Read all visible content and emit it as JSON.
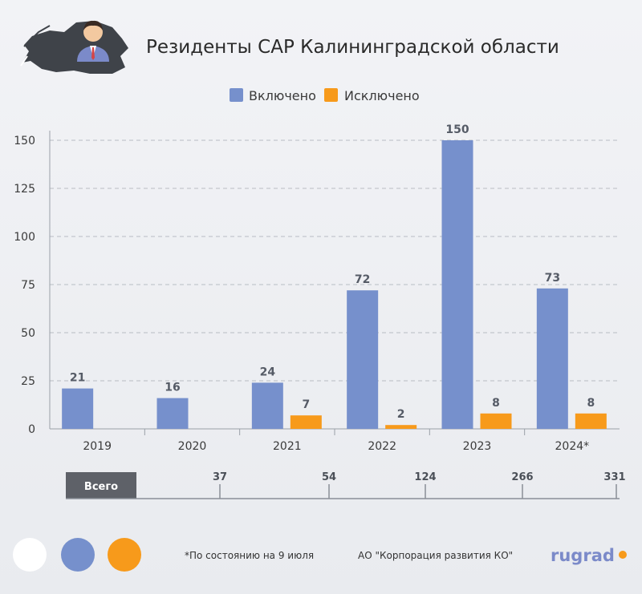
{
  "title": "Резиденты САР Калининградской области",
  "colors": {
    "included": "#7690cc",
    "excluded": "#f79a1b",
    "background": "#eef0f3",
    "brand": "#7b8ac9",
    "brand_dot": "#f79a1b"
  },
  "chart_data": {
    "type": "bar",
    "categories": [
      "2019",
      "2020",
      "2021",
      "2022",
      "2023",
      "2024*"
    ],
    "series": [
      {
        "name": "Включено",
        "values": [
          21,
          16,
          24,
          72,
          150,
          73
        ],
        "labels": [
          "21",
          "16",
          "24",
          "72",
          "150",
          "73"
        ]
      },
      {
        "name": "Исключено",
        "values": [
          0,
          0,
          7,
          2,
          8,
          8
        ],
        "labels": [
          "",
          "",
          "7",
          "2",
          "8",
          "8"
        ]
      }
    ],
    "ylim": [
      0,
      150
    ],
    "yticks": [
      "0",
      "25",
      "50",
      "75",
      "100",
      "125",
      "150"
    ],
    "grid": true,
    "legend": "top-center"
  },
  "totals": {
    "label": "Всего",
    "values": [
      "37",
      "54",
      "124",
      "266",
      "331"
    ]
  },
  "footer": {
    "note": "*По состоянию на 9 июля",
    "source": "АО \"Корпорация развития КО\"",
    "brand": "rugrad"
  }
}
